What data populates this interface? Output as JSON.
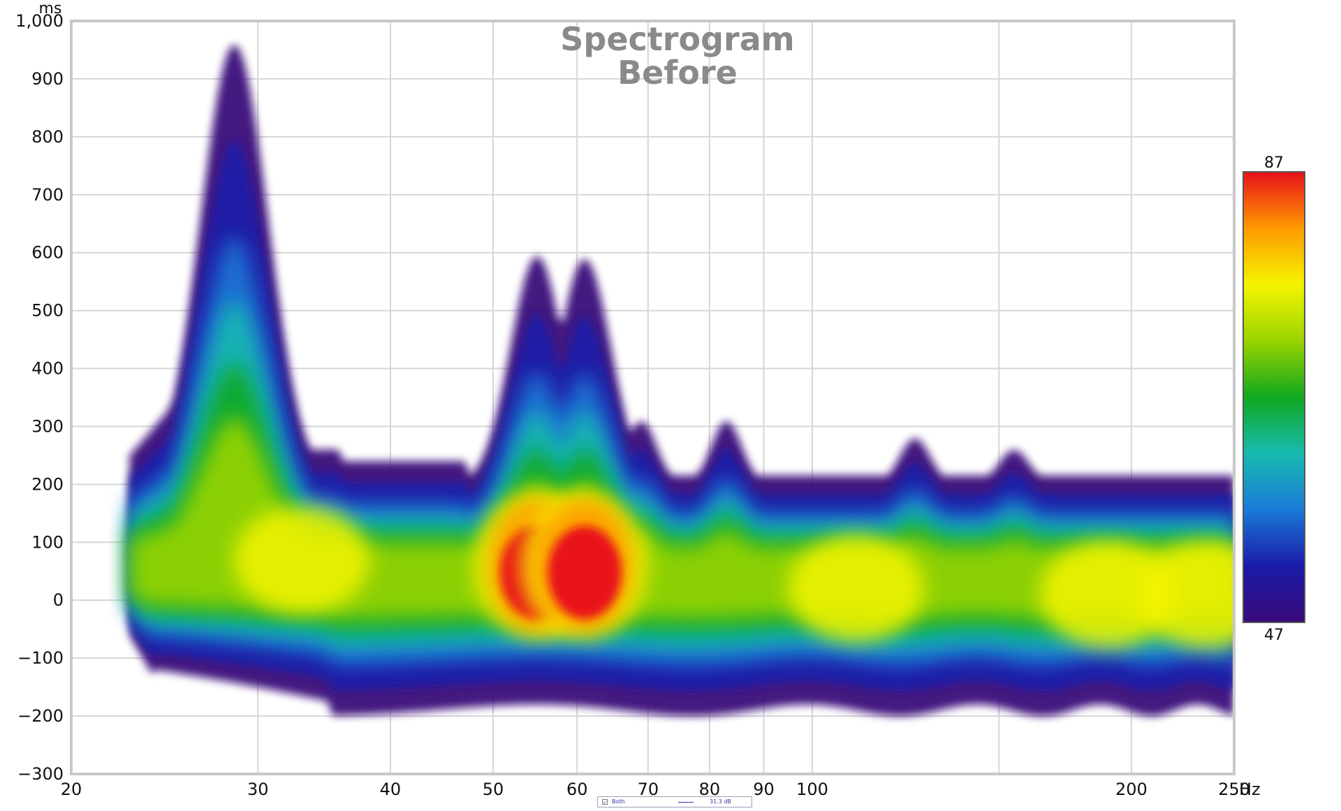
{
  "chart_data": {
    "type": "heatmap",
    "title": "Spectrogram",
    "subtitle": "Before",
    "ylabel": "ms",
    "xunit": "Hz",
    "xscale": "log",
    "xlim": [
      20,
      250
    ],
    "ylim": [
      -300,
      1000
    ],
    "x_ticks": [
      20,
      30,
      40,
      50,
      60,
      70,
      80,
      90,
      100,
      200,
      250
    ],
    "x_tick_labels": [
      "20",
      "30",
      "40",
      "50",
      "60",
      "70",
      "80",
      "90",
      "100",
      "200",
      "250"
    ],
    "x_minor_grid": [
      150
    ],
    "y_ticks": [
      -300,
      -200,
      -100,
      0,
      100,
      200,
      300,
      400,
      500,
      600,
      700,
      800,
      900,
      1000
    ],
    "y_tick_labels": [
      "−300",
      "−200",
      "−100",
      "0",
      "100",
      "200",
      "300",
      "400",
      "500",
      "600",
      "700",
      "800",
      "900",
      "1,000"
    ],
    "grid": true,
    "colorbar": {
      "min": 47,
      "max": 87,
      "min_label": "47",
      "max_label": "87",
      "colors": [
        "#3a0a7a",
        "#1a1aa8",
        "#1a7ad8",
        "#18bab0",
        "#10a820",
        "#9ad400",
        "#f4f400",
        "#ff9a00",
        "#e8101a"
      ]
    },
    "ridge_peaks": [
      {
        "freq": 28.5,
        "time": 960
      },
      {
        "freq": 55,
        "time": 595
      },
      {
        "freq": 61,
        "time": 590
      },
      {
        "freq": 69,
        "time": 310
      },
      {
        "freq": 83,
        "time": 310
      },
      {
        "freq": 125,
        "time": 280
      },
      {
        "freq": 155,
        "time": 260
      }
    ],
    "hot_spots": [
      {
        "freq": 33,
        "time": 70,
        "level": 78
      },
      {
        "freq": 55,
        "time": 60,
        "level": 86
      },
      {
        "freq": 61,
        "time": 60,
        "level": 86
      },
      {
        "freq": 110,
        "time": 20,
        "level": 75
      },
      {
        "freq": 190,
        "time": 10,
        "level": 75
      },
      {
        "freq": 235,
        "time": 10,
        "level": 74
      }
    ]
  },
  "legend": {
    "item_name": "Both",
    "item_value": "31.3 dB",
    "checked_mark": "✓"
  }
}
